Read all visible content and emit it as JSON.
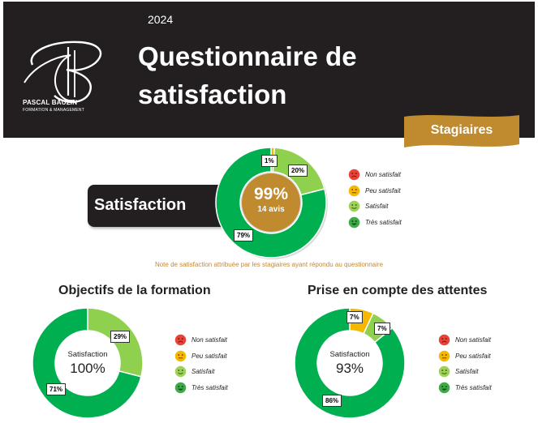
{
  "header": {
    "year": "2024",
    "title_line1": "Questionnaire de",
    "title_line2": "satisfaction",
    "brand_name": "PASCAL BAUZIN",
    "brand_sub": "FORMATION & MANAGEMENT",
    "banner": "Stagiaires"
  },
  "note": "Note de satisfaction attribuée par les stagiaires ayant répondu au questionnaire",
  "legend": [
    {
      "label": "Non satisfait",
      "icon": "frown-icon",
      "color": "#e8443a"
    },
    {
      "label": "Peu satisfait",
      "icon": "neutral-face-icon",
      "color": "#f5b800"
    },
    {
      "label": "Satisfait",
      "icon": "smile-icon",
      "color": "#9ed157"
    },
    {
      "label": "Très satisfait",
      "icon": "big-smile-icon",
      "color": "#3faa47"
    }
  ],
  "colors": {
    "peu": "#f5b800",
    "satisfait": "#8fd14f",
    "tres": "#00b050",
    "center_gold": "#c08a2e",
    "header": "#231f20"
  },
  "charts": {
    "satisfaction": {
      "label": "Satisfaction",
      "center_value": "99%",
      "center_sub": "14 avis"
    },
    "objectifs": {
      "title": "Objectifs de la formation",
      "center_label": "Satisfaction",
      "center_value": "100%"
    },
    "attentes": {
      "title": "Prise en compte des attentes",
      "center_label": "Satisfaction",
      "center_value": "93%"
    }
  },
  "chart_data": [
    {
      "type": "pie",
      "title": "Satisfaction",
      "categories": [
        "Peu satisfait",
        "Satisfait",
        "Très satisfait"
      ],
      "values": [
        1,
        20,
        79
      ],
      "labels": [
        "1%",
        "20%",
        "79%"
      ]
    },
    {
      "type": "pie",
      "title": "Objectifs de la formation",
      "categories": [
        "Satisfait",
        "Très satisfait"
      ],
      "values": [
        29,
        71
      ],
      "labels": [
        "29%",
        "71%"
      ]
    },
    {
      "type": "pie",
      "title": "Prise en compte des attentes",
      "categories": [
        "Peu satisfait",
        "Satisfait",
        "Très satisfait"
      ],
      "values": [
        7,
        7,
        86
      ],
      "labels": [
        "7%",
        "7%",
        "86%"
      ]
    }
  ]
}
